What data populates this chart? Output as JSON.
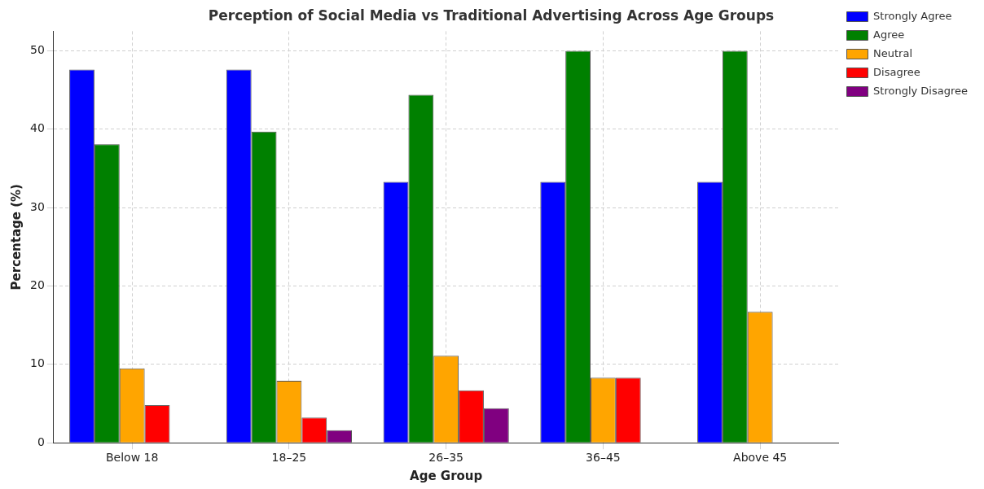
{
  "chart_data": {
    "type": "bar",
    "title": "Perception of Social Media vs Traditional Advertising Across Age Groups",
    "xlabel": "Age Group",
    "ylabel": "Percentage (%)",
    "categories": [
      "Below 18",
      "18–25",
      "26–35",
      "36–45",
      "Above 45"
    ],
    "series": [
      {
        "name": "Strongly Agree",
        "color": "#0000ff",
        "values": [
          47.6,
          47.6,
          33.3,
          33.3,
          33.3
        ]
      },
      {
        "name": "Agree",
        "color": "#008000",
        "values": [
          38.1,
          39.7,
          44.4,
          50,
          50
        ]
      },
      {
        "name": "Neutral",
        "color": "#ffa500",
        "values": [
          9.5,
          7.9,
          11.1,
          8.3,
          16.7
        ]
      },
      {
        "name": "Disagree",
        "color": "#ff0000",
        "values": [
          4.8,
          3.2,
          6.7,
          8.3,
          null
        ]
      },
      {
        "name": "Strongly Disagree",
        "color": "#800080",
        "values": [
          null,
          1.6,
          4.4,
          null,
          null
        ]
      }
    ],
    "ylim": [
      0,
      52.5
    ],
    "yticks": [
      0,
      10,
      20,
      30,
      40,
      50
    ],
    "grid": true,
    "legend": "right"
  }
}
